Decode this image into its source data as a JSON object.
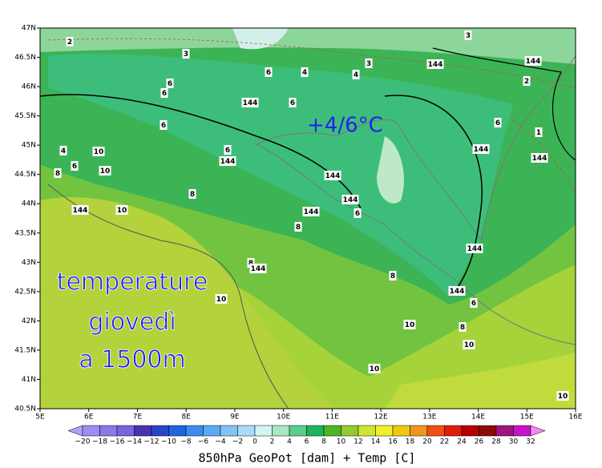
{
  "map": {
    "lat_ticks": [
      "47N",
      "46.5N",
      "46N",
      "45.5N",
      "45N",
      "44.5N",
      "44N",
      "43.5N",
      "43N",
      "42.5N",
      "42N",
      "41.5N",
      "41N",
      "40.5N"
    ],
    "lon_ticks": [
      "5E",
      "6E",
      "7E",
      "8E",
      "9E",
      "10E",
      "11E",
      "12E",
      "13E",
      "14E",
      "15E",
      "16E"
    ],
    "contour_labels": [
      "2",
      "3",
      "3",
      "3",
      "4",
      "4",
      "144",
      "144",
      "2",
      "6",
      "6",
      "6",
      "144",
      "6",
      "6",
      "6",
      "1",
      "4",
      "10",
      "6",
      "144",
      "144",
      "6",
      "144",
      "8",
      "10",
      "144",
      "144",
      "8",
      "144",
      "10",
      "144",
      "6",
      "8",
      "144",
      "8",
      "144",
      "8",
      "144",
      "6",
      "10",
      "10",
      "8",
      "10",
      "10",
      "10"
    ],
    "annotations": {
      "highlight": "+4/6°C",
      "lines": [
        "temperature",
        "giovedì",
        "a 1500m"
      ]
    }
  },
  "colorbar": {
    "labels": [
      "−20",
      "−18",
      "−16",
      "−14",
      "−12",
      "−10",
      "−8",
      "−6",
      "−4",
      "−2",
      "0",
      "2",
      "4",
      "6",
      "8",
      "10",
      "12",
      "14",
      "16",
      "18",
      "20",
      "22",
      "24",
      "26",
      "28",
      "30",
      "32"
    ],
    "colors": [
      "#a08cf0",
      "#8c78e6",
      "#7864dc",
      "#4b32b4",
      "#2846c8",
      "#1e64dc",
      "#3c8cf0",
      "#5aaaf5",
      "#82c3f5",
      "#aadcfa",
      "#d2f5f0",
      "#aae6c3",
      "#5acd8c",
      "#1eb45a",
      "#50b428",
      "#96c832",
      "#cde632",
      "#f0f028",
      "#f0c814",
      "#f0961e",
      "#f05014",
      "#dc1e0a",
      "#b40000",
      "#8c0a0a",
      "#a0147d",
      "#c814c8"
    ],
    "under_color": "#b4a0f5",
    "over_color": "#f08cf0",
    "caption": "850hPa GeoPot [dam] + Temp [C]"
  }
}
